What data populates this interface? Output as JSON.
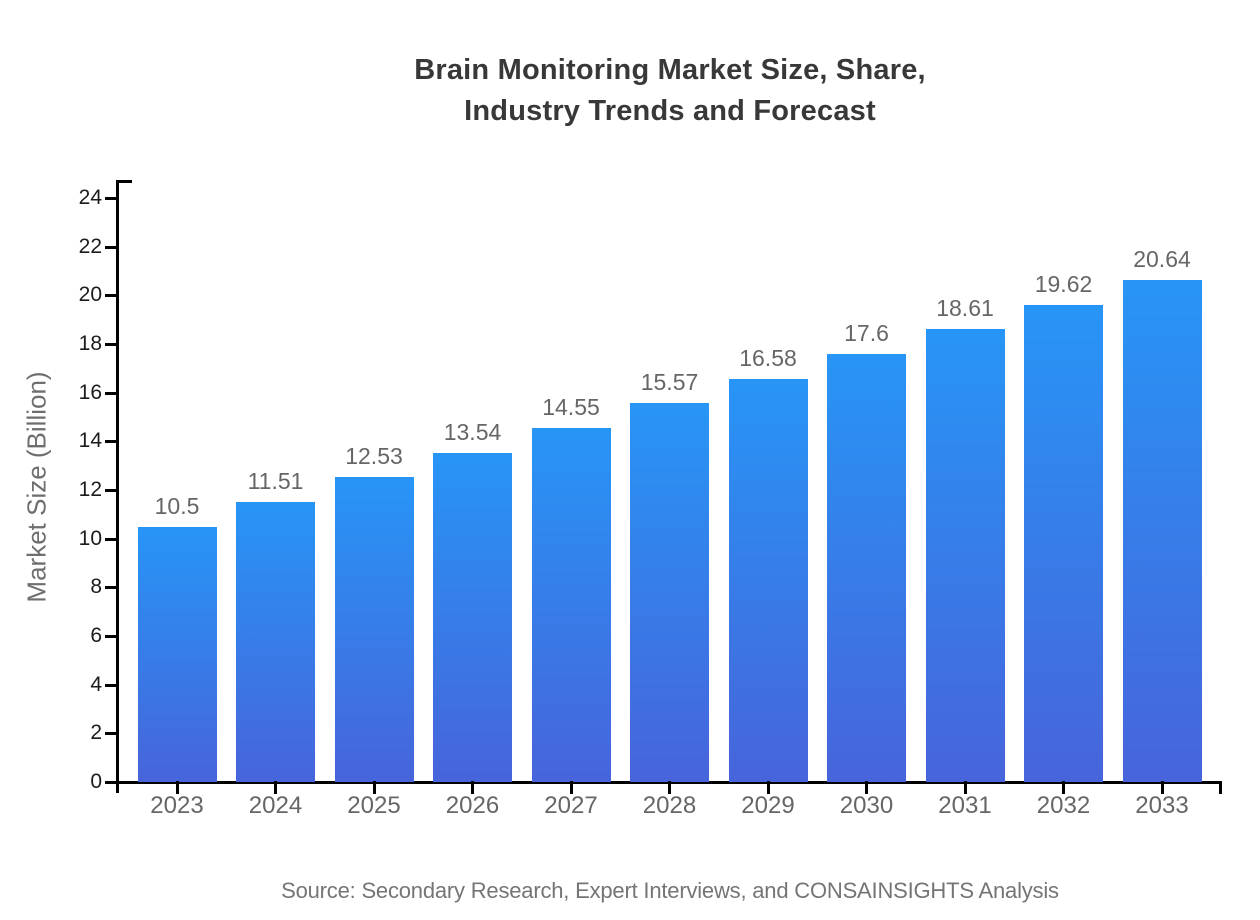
{
  "chart_data": {
    "type": "bar",
    "title": "Brain Monitoring Market Size, Share,\nIndustry Trends and Forecast",
    "categories": [
      "2023",
      "2024",
      "2025",
      "2026",
      "2027",
      "2028",
      "2029",
      "2030",
      "2031",
      "2032",
      "2033"
    ],
    "values": [
      10.5,
      11.51,
      12.53,
      13.54,
      14.55,
      15.57,
      16.58,
      17.6,
      18.61,
      19.62,
      20.64
    ],
    "bar_labels": [
      "10.5",
      "11.51",
      "12.53",
      "13.54",
      "14.55",
      "15.57",
      "16.58",
      "17.6",
      "18.61",
      "19.62",
      "20.64"
    ],
    "xlabel": "",
    "ylabel": "Market Size (Billion)",
    "ylim": [
      0,
      24
    ],
    "ytick_step": 2,
    "ytick_labels": [
      "0",
      "2",
      "4",
      "6",
      "8",
      "10",
      "12",
      "14",
      "16",
      "18",
      "20",
      "22",
      "24"
    ],
    "grid": false,
    "legend_position": "none",
    "source_note": "Source: Secondary Research, Expert Interviews, and CONSAINSIGHTS Analysis",
    "colors": {
      "bar_gradient_top": "#2795F6",
      "bar_gradient_bottom": "#4764DB",
      "axis": "#000000",
      "title_text": "#383838",
      "y_tick_label": "#1c1c1c",
      "category_label": "#666666",
      "value_label": "#666666",
      "axis_title": "#6e6e6e",
      "source_text": "#757575",
      "background": "#ffffff"
    }
  }
}
